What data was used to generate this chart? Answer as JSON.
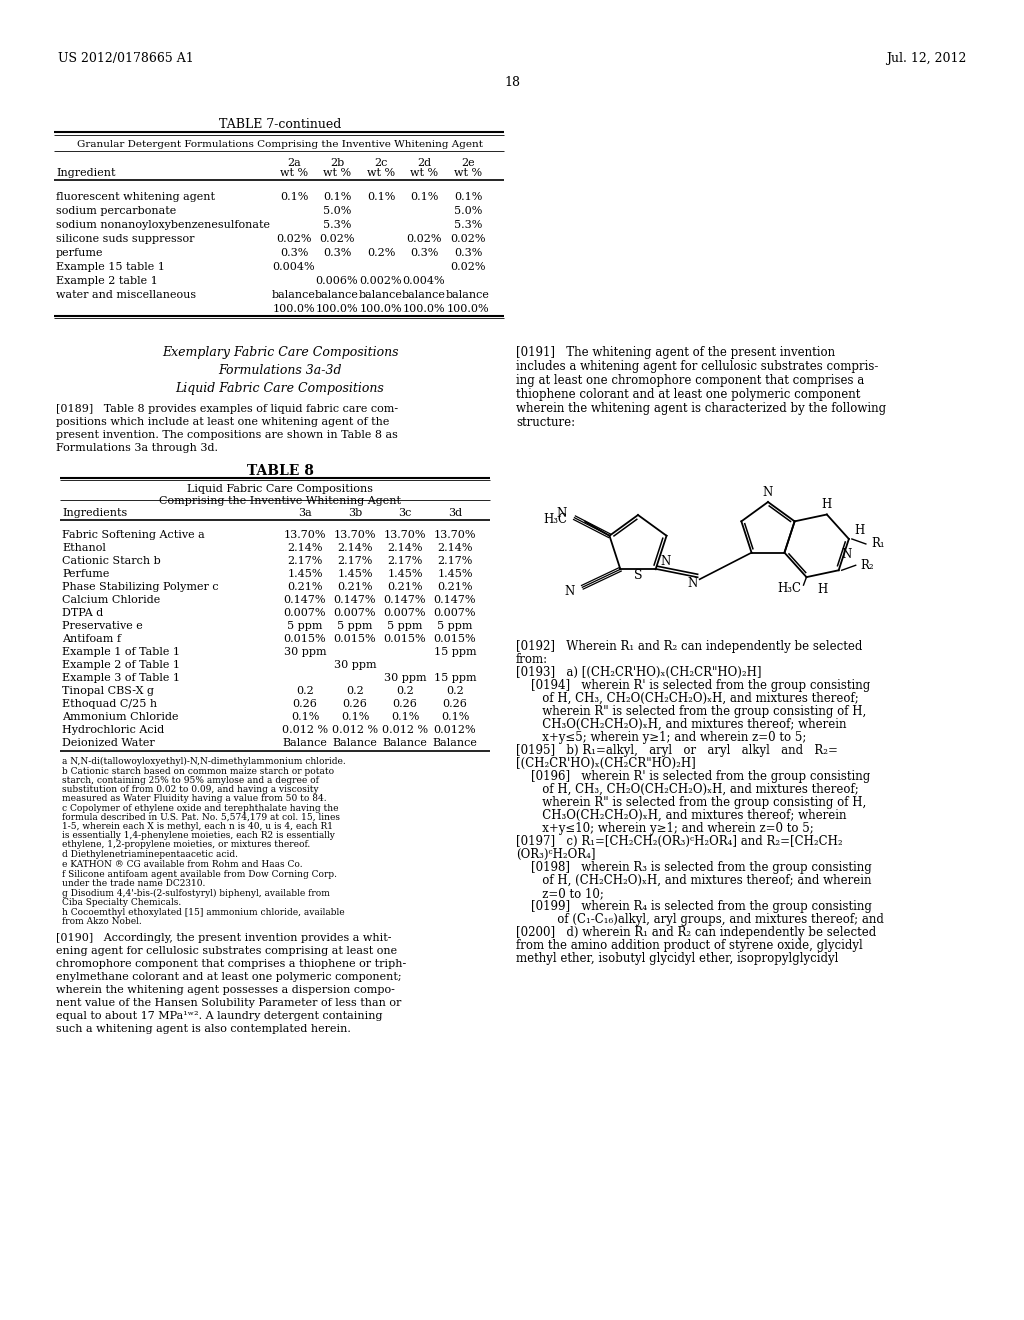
{
  "bg_color": "#ffffff",
  "header_left": "US 2012/0178665 A1",
  "header_right": "Jul. 12, 2012",
  "page_number": "18",
  "table7_title": "TABLE 7-continued",
  "table7_subtitle": "Granular Detergent Formulations Comprising the Inventive Whitening Agent",
  "table7_rows": [
    [
      "fluorescent whitening agent",
      "0.1%",
      "0.1%",
      "0.1%",
      "0.1%",
      "0.1%"
    ],
    [
      "sodium percarbonate",
      "",
      "5.0%",
      "",
      "",
      "5.0%"
    ],
    [
      "sodium nonanoyloxybenzenesulfonate",
      "",
      "5.3%",
      "",
      "",
      "5.3%"
    ],
    [
      "silicone suds suppressor",
      "0.02%",
      "0.02%",
      "",
      "0.02%",
      "0.02%"
    ],
    [
      "perfume",
      "0.3%",
      "0.3%",
      "0.2%",
      "0.3%",
      "0.3%"
    ],
    [
      "Example 15 table 1",
      "0.004%",
      "",
      "",
      "",
      "0.02%"
    ],
    [
      "Example 2 table 1",
      "",
      "0.006%",
      "0.002%",
      "0.004%",
      ""
    ],
    [
      "water and miscellaneous",
      "balance",
      "balance",
      "balance",
      "balance",
      "balance"
    ],
    [
      "",
      "100.0%",
      "100.0%",
      "100.0%",
      "100.0%",
      "100.0%"
    ]
  ],
  "table8_rows": [
    [
      "Fabric Softening Active a",
      "13.70%",
      "13.70%",
      "13.70%",
      "13.70%"
    ],
    [
      "Ethanol",
      "2.14%",
      "2.14%",
      "2.14%",
      "2.14%"
    ],
    [
      "Cationic Starch b",
      "2.17%",
      "2.17%",
      "2.17%",
      "2.17%"
    ],
    [
      "Perfume",
      "1.45%",
      "1.45%",
      "1.45%",
      "1.45%"
    ],
    [
      "Phase Stabilizing Polymer c",
      "0.21%",
      "0.21%",
      "0.21%",
      "0.21%"
    ],
    [
      "Calcium Chloride",
      "0.147%",
      "0.147%",
      "0.147%",
      "0.147%"
    ],
    [
      "DTPA d",
      "0.007%",
      "0.007%",
      "0.007%",
      "0.007%"
    ],
    [
      "Preservative e",
      "5 ppm",
      "5 ppm",
      "5 ppm",
      "5 ppm"
    ],
    [
      "Antifoam f",
      "0.015%",
      "0.015%",
      "0.015%",
      "0.015%"
    ],
    [
      "Example 1 of Table 1",
      "30 ppm",
      "",
      "",
      "15 ppm"
    ],
    [
      "Example 2 of Table 1",
      "",
      "30 ppm",
      "",
      ""
    ],
    [
      "Example 3 of Table 1",
      "",
      "",
      "30 ppm",
      "15 ppm"
    ],
    [
      "Tinopal CBS-X g",
      "0.2",
      "0.2",
      "0.2",
      "0.2"
    ],
    [
      "Ethoquad C/25 h",
      "0.26",
      "0.26",
      "0.26",
      "0.26"
    ],
    [
      "Ammonium Chloride",
      "0.1%",
      "0.1%",
      "0.1%",
      "0.1%"
    ],
    [
      "Hydrochloric Acid",
      "0.012 %",
      "0.012 %",
      "0.012 %",
      "0.012%"
    ],
    [
      "Deionized Water",
      "Balance",
      "Balance",
      "Balance",
      "Balance"
    ]
  ],
  "table8_fn": [
    "a N,N-di(tallowoyloxyethyl)-N,N-dimethylammonium chloride.",
    "b Cationic starch based on common maize starch or potato starch, containing 25% to 95% amylose and a degree of substitution of from 0.02 to 0.09, and having a viscosity measured as Water Fluidity having a value from 50 to 84.",
    "c Copolymer of ethylene oxide and terephthalate having the formula described in U.S. Pat. No. 5,574,179 at col. 15, lines 1-5, wherein each X is methyl, each n is 40, u is 4, each R1 is essentially 1,4-phenylene moieties, each R2 is essentially ethylene, 1,2-propylene moieties, or mixtures thereof.",
    "d Diethylenetriaminepentaacetic acid.",
    "e KATHON ® CG available from Rohm and Haas Co.",
    "f Silicone antifoam agent available from Dow Corning Corp. under the trade name DC2310.",
    "g Disodium 4,4'-bis-(2-sulfostyryl) biphenyl, available from Ciba Specialty Chemicals.",
    "h Cocoemthyl ethoxylated [15] ammonium chloride, available from Akzo Nobel."
  ]
}
